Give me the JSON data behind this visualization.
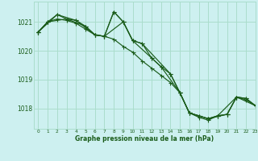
{
  "title": "Graphe pression niveau de la mer (hPa)",
  "bg_color": "#cdf0f0",
  "grid_color": "#aaddcc",
  "line_color": "#1a5c1a",
  "marker_color": "#1a5c1a",
  "xlim": [
    -0.5,
    23
  ],
  "ylim": [
    1017.3,
    1021.7
  ],
  "yticks": [
    1018,
    1019,
    1020,
    1021
  ],
  "xticks": [
    0,
    1,
    2,
    3,
    4,
    5,
    6,
    7,
    8,
    9,
    10,
    11,
    12,
    13,
    14,
    15,
    16,
    17,
    18,
    19,
    20,
    21,
    22,
    23
  ],
  "series1": [
    [
      0,
      1020.65
    ],
    [
      1,
      1021.0
    ],
    [
      2,
      1021.25
    ],
    [
      3,
      1021.1
    ],
    [
      4,
      1021.05
    ],
    [
      5,
      1020.85
    ],
    [
      6,
      1020.55
    ],
    [
      7,
      1020.5
    ],
    [
      8,
      1021.35
    ],
    [
      9,
      1021.0
    ],
    [
      10,
      1020.35
    ],
    [
      11,
      1020.25
    ],
    [
      12,
      1019.75
    ],
    [
      13,
      1019.45
    ],
    [
      14,
      1019.2
    ],
    [
      15,
      1018.55
    ],
    [
      16,
      1017.85
    ],
    [
      17,
      1017.75
    ],
    [
      18,
      1017.65
    ],
    [
      19,
      1017.75
    ],
    [
      20,
      1017.8
    ],
    [
      21,
      1018.4
    ],
    [
      22,
      1018.35
    ],
    [
      23,
      1018.1
    ]
  ],
  "series2": [
    [
      0,
      1020.65
    ],
    [
      1,
      1021.0
    ],
    [
      2,
      1021.1
    ],
    [
      3,
      1021.05
    ],
    [
      4,
      1020.95
    ],
    [
      5,
      1020.75
    ],
    [
      6,
      1020.55
    ],
    [
      7,
      1020.5
    ],
    [
      8,
      1020.4
    ],
    [
      9,
      1020.15
    ],
    [
      10,
      1019.95
    ],
    [
      11,
      1019.65
    ],
    [
      12,
      1019.4
    ],
    [
      13,
      1019.15
    ],
    [
      14,
      1018.9
    ],
    [
      15,
      1018.55
    ],
    [
      16,
      1017.85
    ],
    [
      17,
      1017.7
    ],
    [
      18,
      1017.6
    ],
    [
      19,
      1017.75
    ],
    [
      20,
      1017.8
    ],
    [
      21,
      1018.4
    ],
    [
      22,
      1018.3
    ],
    [
      23,
      1018.1
    ]
  ],
  "series3": [
    [
      0,
      1020.65
    ],
    [
      2,
      1021.25
    ],
    [
      4,
      1021.05
    ],
    [
      6,
      1020.55
    ],
    [
      7,
      1020.5
    ],
    [
      8,
      1021.35
    ],
    [
      9,
      1021.0
    ],
    [
      10,
      1020.35
    ],
    [
      11,
      1020.25
    ],
    [
      14,
      1019.2
    ],
    [
      15,
      1018.55
    ],
    [
      16,
      1017.85
    ],
    [
      17,
      1017.75
    ],
    [
      18,
      1017.65
    ],
    [
      20,
      1017.8
    ],
    [
      21,
      1018.4
    ],
    [
      23,
      1018.1
    ]
  ],
  "series4": [
    [
      0,
      1020.65
    ],
    [
      1,
      1021.0
    ],
    [
      3,
      1021.1
    ],
    [
      5,
      1020.85
    ],
    [
      6,
      1020.55
    ],
    [
      7,
      1020.5
    ],
    [
      9,
      1021.0
    ],
    [
      10,
      1020.35
    ],
    [
      12,
      1019.75
    ],
    [
      13,
      1019.45
    ],
    [
      15,
      1018.55
    ],
    [
      16,
      1017.85
    ],
    [
      18,
      1017.65
    ],
    [
      19,
      1017.75
    ],
    [
      21,
      1018.4
    ],
    [
      22,
      1018.35
    ],
    [
      23,
      1018.1
    ]
  ]
}
